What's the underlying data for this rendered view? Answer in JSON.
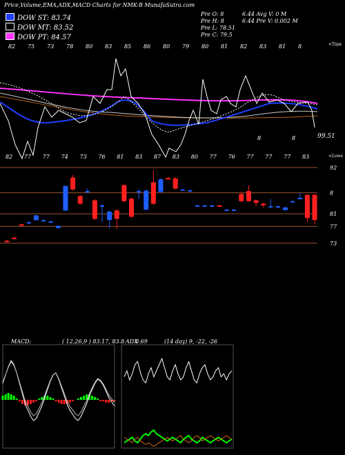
{
  "header": {
    "title": "Price,Volume,EMA,ADX,MACD Charts for NMK-B MunafaSutra.com"
  },
  "legend": [
    {
      "label": "DOW ST: 83.74",
      "color": "#1f3fff"
    },
    {
      "label": "DOW MT: 83.52",
      "color": "#ffffff"
    },
    {
      "label": "DOW PT: 84.57",
      "color": "#ff33ff"
    }
  ],
  "stats": {
    "row1": "Pre  O: 8",
    "row2": "Pre  H: 8",
    "row3": "Pre  L: 78.51",
    "row4": "Pre  C: 79.5",
    "row1b": "6.44   Avg V: 0  M",
    "row2b": "6.44   Pre  V: 0.002  M"
  },
  "top_panel": {
    "top_label": "<Tops",
    "low_label": "<Lows",
    "right_value": "99.51",
    "top_ticks": [
      "82",
      "75",
      "73",
      "78",
      "80",
      "83",
      "85",
      "86",
      "80",
      "79",
      "80",
      "81",
      "82",
      "83",
      "81",
      "8"
    ],
    "bottom_ticks": [
      "82",
      "77",
      "77",
      "74",
      "73",
      "76",
      "81",
      "83",
      "87",
      "83",
      "80",
      "77",
      "76",
      "77",
      "77",
      "77",
      "83"
    ],
    "mid_marks": [
      "8",
      "8"
    ]
  },
  "chart_data": [
    {
      "type": "candlestick",
      "title": "",
      "ylabels": [
        "92",
        "8",
        "81",
        "77",
        "73"
      ],
      "candles": [
        {
          "o": 74.6,
          "c": 74.4,
          "h": 74.8,
          "l": 74.2,
          "dir": "down"
        },
        {
          "o": 75.3,
          "c": 75.0,
          "h": 75.5,
          "l": 74.9,
          "dir": "down"
        },
        {
          "o": 78.5,
          "c": 78.2,
          "h": 78.7,
          "l": 78.1,
          "dir": "down"
        },
        {
          "o": 79.0,
          "c": 79.0,
          "h": 79.2,
          "l": 78.9,
          "dir": "flat"
        },
        {
          "o": 79.5,
          "c": 80.6,
          "h": 80.8,
          "l": 79.4,
          "dir": "up"
        },
        {
          "o": 79.5,
          "c": 79.5,
          "h": 79.6,
          "l": 79.4,
          "dir": "flat"
        },
        {
          "o": 79.2,
          "c": 79.2,
          "h": 79.3,
          "l": 79.1,
          "dir": "flat"
        },
        {
          "o": 77.6,
          "c": 78.1,
          "h": 78.3,
          "l": 77.5,
          "dir": "up"
        },
        {
          "o": 81.8,
          "c": 87.6,
          "h": 87.8,
          "l": 81.5,
          "dir": "up"
        },
        {
          "o": 89.6,
          "c": 86.8,
          "h": 90.2,
          "l": 86.5,
          "dir": "down"
        },
        {
          "o": 85.2,
          "c": 83.4,
          "h": 85.5,
          "l": 83.1,
          "dir": "down"
        },
        {
          "o": 86.4,
          "c": 86.4,
          "h": 87.0,
          "l": 85.9,
          "dir": "flat"
        },
        {
          "o": 84.2,
          "c": 79.8,
          "h": 84.5,
          "l": 79.5,
          "dir": "down"
        },
        {
          "o": 83.0,
          "c": 83.0,
          "h": 83.2,
          "l": 79.0,
          "dir": "flat"
        },
        {
          "o": 79.5,
          "c": 81.5,
          "h": 81.7,
          "l": 77.5,
          "dir": "up"
        },
        {
          "o": 81.8,
          "c": 79.8,
          "h": 82.0,
          "l": 77.3,
          "dir": "down"
        },
        {
          "o": 87.8,
          "c": 84.0,
          "h": 88.0,
          "l": 83.8,
          "dir": "down"
        },
        {
          "o": 84.6,
          "c": 80.3,
          "h": 84.8,
          "l": 80.1,
          "dir": "down"
        },
        {
          "o": 86.4,
          "c": 86.4,
          "h": 86.8,
          "l": 84.5,
          "dir": "flat"
        },
        {
          "o": 82.0,
          "c": 86.5,
          "h": 86.8,
          "l": 81.8,
          "dir": "up"
        },
        {
          "o": 88.5,
          "c": 83.4,
          "h": 91.3,
          "l": 83.1,
          "dir": "down"
        },
        {
          "o": 86.2,
          "c": 89.2,
          "h": 89.4,
          "l": 86.0,
          "dir": "up"
        },
        {
          "o": 89.5,
          "c": 89.3,
          "h": 89.7,
          "l": 89.1,
          "dir": "down"
        },
        {
          "o": 89.4,
          "c": 87.0,
          "h": 89.7,
          "l": 86.8,
          "dir": "down"
        },
        {
          "o": 86.8,
          "c": 86.8,
          "h": 86.9,
          "l": 86.6,
          "dir": "flat"
        },
        {
          "o": 86.6,
          "c": 86.6,
          "h": 86.7,
          "l": 86.5,
          "dir": "flat"
        },
        {
          "o": 83.0,
          "c": 83.0,
          "h": 83.1,
          "l": 82.9,
          "dir": "flat"
        },
        {
          "o": 83.0,
          "c": 83.0,
          "h": 83.1,
          "l": 82.9,
          "dir": "flat"
        },
        {
          "o": 83.0,
          "c": 83.0,
          "h": 83.1,
          "l": 82.9,
          "dir": "flat"
        },
        {
          "o": 83.0,
          "c": 82.8,
          "h": 83.1,
          "l": 82.7,
          "dir": "down"
        },
        {
          "o": 82.0,
          "c": 82.0,
          "h": 82.1,
          "l": 81.9,
          "dir": "flat"
        },
        {
          "o": 82.0,
          "c": 82.0,
          "h": 82.1,
          "l": 81.9,
          "dir": "flat"
        },
        {
          "o": 85.7,
          "c": 84.0,
          "h": 86.2,
          "l": 83.7,
          "dir": "down"
        },
        {
          "o": 86.4,
          "c": 84.0,
          "h": 87.8,
          "l": 83.8,
          "dir": "down"
        },
        {
          "o": 84.2,
          "c": 83.6,
          "h": 84.4,
          "l": 82.8,
          "dir": "down"
        },
        {
          "o": 83.4,
          "c": 83.0,
          "h": 83.6,
          "l": 82.5,
          "dir": "down"
        },
        {
          "o": 82.8,
          "c": 82.8,
          "h": 84.5,
          "l": 82.6,
          "dir": "flat"
        },
        {
          "o": 82.8,
          "c": 82.8,
          "h": 82.9,
          "l": 82.6,
          "dir": "flat"
        },
        {
          "o": 81.9,
          "c": 82.5,
          "h": 82.7,
          "l": 81.7,
          "dir": "up"
        },
        {
          "o": 84.0,
          "c": 84.0,
          "h": 84.1,
          "l": 83.9,
          "dir": "flat"
        },
        {
          "o": 84.6,
          "c": 84.8,
          "h": 86.0,
          "l": 84.5,
          "dir": "up"
        },
        {
          "o": 85.5,
          "c": 80.0,
          "h": 85.6,
          "l": 79.0,
          "dir": "down"
        },
        {
          "o": 85.5,
          "c": 79.5,
          "h": 85.7,
          "l": 78.5,
          "dir": "down"
        }
      ]
    },
    {
      "type": "line",
      "title": "MACD:",
      "params": "( 12,26,9 ) 83.17, 83.8",
      "series": [
        {
          "values": [
            0.8,
            1.2,
            1.6,
            1.9,
            1.7,
            1.3,
            0.8,
            0.3,
            -0.2,
            -0.5,
            -0.8,
            -1.0,
            -0.9,
            -0.6,
            -0.3,
            0.1,
            0.5,
            0.9,
            1.2,
            1.3,
            1.0,
            0.6,
            0.2,
            -0.2,
            -0.5,
            -0.7,
            -0.9,
            -1.0,
            -0.8,
            -0.5,
            -0.2,
            0.2,
            0.5,
            0.8,
            1.0,
            0.9,
            0.7,
            0.4,
            0.1,
            -0.1,
            -0.3
          ]
        }
      ],
      "histogram": [
        0.3,
        0.4,
        0.5,
        0.4,
        0.3,
        0.1,
        -0.1,
        -0.3,
        -0.4,
        -0.4,
        -0.3,
        -0.2,
        -0.1,
        0.1,
        0.2,
        0.3,
        0.3,
        0.2,
        0.1,
        -0.1,
        -0.2,
        -0.3,
        -0.3,
        -0.3,
        -0.2,
        -0.1,
        0.0,
        0.1,
        0.2,
        0.3,
        0.4,
        0.4,
        0.3,
        0.2,
        0.1,
        -0.1,
        -0.1,
        -0.2,
        -0.2,
        -0.1,
        -0.1
      ]
    },
    {
      "type": "line",
      "title": "ADX",
      "subtitle": "0.69",
      "params": "(14 day) 9, -22, -26",
      "series": [
        {
          "values": [
            22,
            26,
            20,
            24,
            30,
            32,
            25,
            20,
            18,
            24,
            28,
            22,
            26,
            30,
            34,
            28,
            22,
            20,
            26,
            30,
            24,
            20,
            22,
            28,
            32,
            26,
            20,
            18,
            24,
            28,
            30,
            24,
            20,
            22,
            26,
            28,
            22,
            24,
            20,
            24,
            26
          ]
        },
        {
          "values": [
            3,
            4,
            5,
            6,
            4,
            3,
            5,
            7,
            8,
            7,
            9,
            10,
            8,
            7,
            6,
            5,
            4,
            5,
            6,
            5,
            4,
            3,
            5,
            6,
            7,
            5,
            4,
            3,
            4,
            6,
            5,
            4,
            3,
            4,
            5,
            6,
            5,
            4,
            3,
            4,
            5
          ]
        },
        {
          "values": [
            6,
            5,
            4,
            3,
            5,
            6,
            4,
            3,
            2,
            3,
            2,
            1,
            2,
            3,
            4,
            5,
            6,
            5,
            4,
            5,
            6,
            7,
            5,
            4,
            3,
            4,
            6,
            7,
            6,
            4,
            5,
            6,
            7,
            6,
            5,
            4,
            5,
            6,
            7,
            6,
            5
          ]
        }
      ]
    }
  ]
}
